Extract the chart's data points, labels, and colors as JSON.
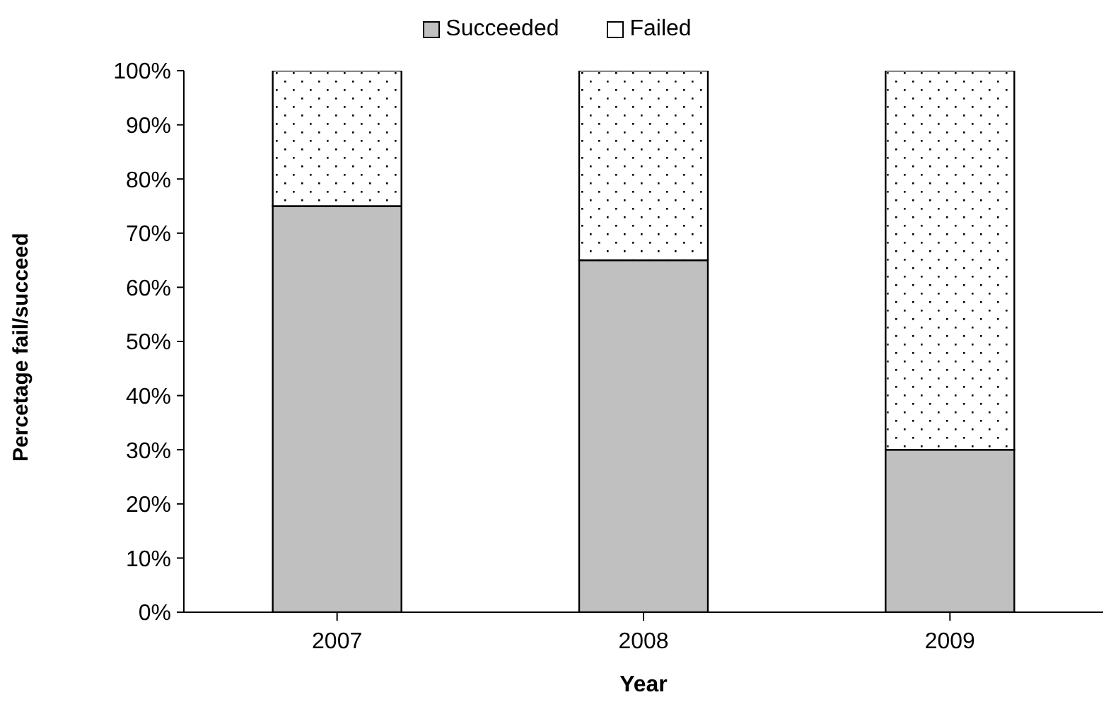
{
  "chart_data": {
    "type": "bar",
    "stacked": true,
    "categories": [
      "2007",
      "2008",
      "2009"
    ],
    "series": [
      {
        "name": "Succeeded",
        "color": "#c0c0c0",
        "values": [
          75,
          65,
          30
        ]
      },
      {
        "name": "Failed",
        "color": "#ffffff",
        "values": [
          25,
          35,
          70
        ]
      }
    ],
    "ylim": [
      0,
      100
    ],
    "yticks": [
      {
        "value": 0,
        "label": "0%"
      },
      {
        "value": 10,
        "label": "10%"
      },
      {
        "value": 20,
        "label": "20%"
      },
      {
        "value": 30,
        "label": "30%"
      },
      {
        "value": 40,
        "label": "40%"
      },
      {
        "value": 50,
        "label": "50%"
      },
      {
        "value": 60,
        "label": "60%"
      },
      {
        "value": 70,
        "label": "70%"
      },
      {
        "value": 80,
        "label": "80%"
      },
      {
        "value": 90,
        "label": "90%"
      },
      {
        "value": 100,
        "label": "100%"
      }
    ],
    "xlabel": "Year",
    "ylabel": "Percetage fail/succeed",
    "legend": "top",
    "grid": false
  }
}
